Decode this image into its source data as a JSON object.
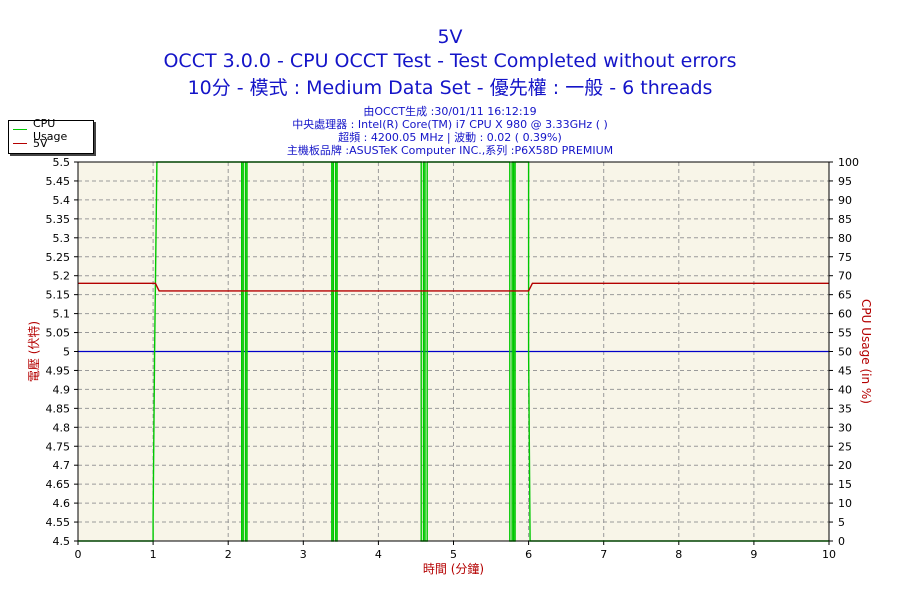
{
  "chart_data": {
    "type": "line",
    "title": "5V",
    "subtitle_1": "OCCT 3.0.0 - CPU OCCT Test - Test Completed without errors",
    "subtitle_2": "10分 - 模式 : Medium Data Set - 優先權 : 一般 - 6 threads",
    "info": [
      "由OCCT生成 :30/01/11 16:12:19",
      "中央處理器 : Intel(R) Core(TM) i7 CPU X 980 @ 3.33GHz (    )",
      "超頻 : 4200.05 MHz | 波動 : 0.02 ( 0.39%)",
      "主機板品牌 :ASUSTeK Computer INC.,系列 :P6X58D PREMIUM"
    ],
    "xlabel": "時間 (分鐘)",
    "ylabel_left": "電壓 (伏特)",
    "ylabel_right": "CPU Usage (in %)",
    "xlim": [
      0,
      10
    ],
    "ylim_left": [
      4.5,
      5.5
    ],
    "ylim_right": [
      0,
      100
    ],
    "x_ticks": [
      "0",
      "1",
      "2",
      "3",
      "4",
      "5",
      "6",
      "7",
      "8",
      "9",
      "10"
    ],
    "y_ticks_left": [
      "4.5",
      "4.55",
      "4.6",
      "4.65",
      "4.7",
      "4.75",
      "4.8",
      "4.85",
      "4.9",
      "4.95",
      "5",
      "5.05",
      "5.1",
      "5.15",
      "5.2",
      "5.25",
      "5.3",
      "5.35",
      "5.4",
      "5.45",
      "5.5"
    ],
    "y_ticks_right": [
      "0",
      "5",
      "10",
      "15",
      "20",
      "25",
      "30",
      "35",
      "40",
      "45",
      "50",
      "55",
      "60",
      "65",
      "70",
      "75",
      "80",
      "85",
      "90",
      "95",
      "100"
    ],
    "grid": true,
    "legend_position": "top-left",
    "series": [
      {
        "name": "CPU Usage",
        "axis": "right",
        "color": "#00c800",
        "x": [
          0,
          1.0,
          1.0,
          1.02,
          1.05,
          2.18,
          2.18,
          2.2,
          2.2,
          2.23,
          2.23,
          2.25,
          2.25,
          3.38,
          3.38,
          3.4,
          3.4,
          3.43,
          3.43,
          3.45,
          3.45,
          4.57,
          4.57,
          4.6,
          4.6,
          4.62,
          4.62,
          4.65,
          4.65,
          5.75,
          5.75,
          5.78,
          5.78,
          5.8,
          5.8,
          5.82,
          5.82,
          6.0,
          6.0,
          6.02,
          10
        ],
        "y": [
          0,
          0,
          6,
          50,
          100,
          100,
          0,
          0,
          100,
          100,
          0,
          0,
          100,
          100,
          0,
          0,
          100,
          100,
          0,
          0,
          100,
          100,
          0,
          0,
          100,
          100,
          0,
          0,
          100,
          100,
          0,
          0,
          100,
          100,
          0,
          0,
          100,
          100,
          50,
          0,
          0
        ]
      },
      {
        "name": "5V",
        "axis": "left",
        "color": "#b40000",
        "x": [
          0,
          1.03,
          1.08,
          6.0,
          6.05,
          10
        ],
        "y": [
          5.18,
          5.18,
          5.16,
          5.16,
          5.18,
          5.18
        ]
      }
    ],
    "reference_line": {
      "axis": "left",
      "y": 5.0,
      "color": "#0000c8"
    }
  },
  "colors": {
    "plot_bg": "#f8f5e8",
    "grid": "#9a9a9a",
    "axis_text": "#000000",
    "left_axis_label": "#b40000",
    "right_axis_label": "#b40000",
    "title": "#1414c8"
  }
}
